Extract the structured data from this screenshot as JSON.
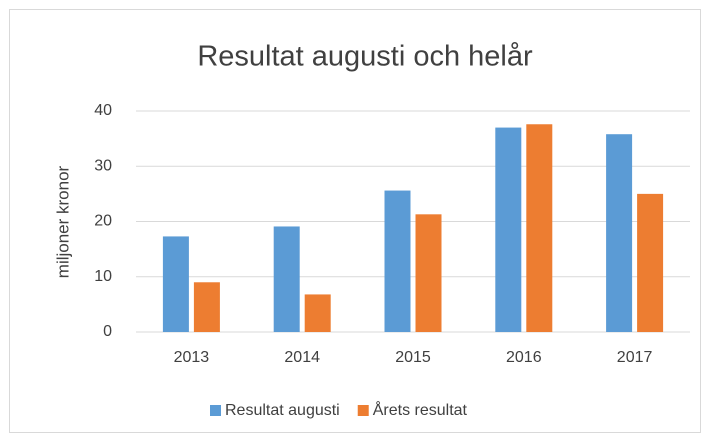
{
  "chart_data": {
    "type": "bar",
    "title": "Resultat augusti och helår",
    "ylabel": "miljoner kronor",
    "categories": [
      "2013",
      "2014",
      "2015",
      "2016",
      "2017"
    ],
    "series": [
      {
        "name": "Resultat augusti",
        "color": "#5b9bd5",
        "values": [
          17.3,
          19.1,
          25.6,
          37,
          35.8
        ]
      },
      {
        "name": "Årets resultat",
        "color": "#ed7d31",
        "values": [
          9,
          6.8,
          21.3,
          37.6,
          25
        ]
      }
    ],
    "ylim": [
      0,
      40
    ],
    "yticks": [
      0,
      10,
      20,
      30,
      40
    ],
    "grid": true,
    "legend": "bottom"
  }
}
